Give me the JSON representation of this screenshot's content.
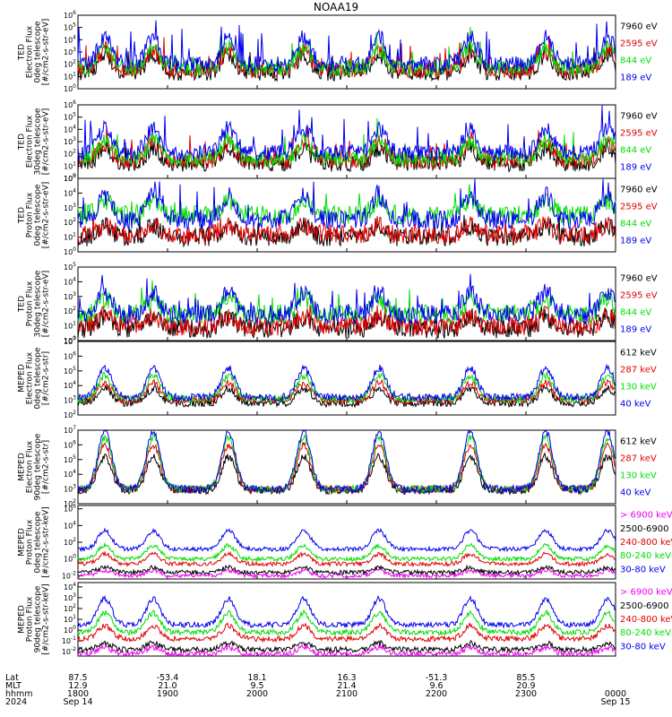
{
  "title": "NOAA19",
  "colors": {
    "black": "#000000",
    "red": "#e00000",
    "green": "#00dd00",
    "blue": "#0000ee",
    "magenta": "#ee00ee"
  },
  "chart_data": {
    "type": "line",
    "title": "NOAA19",
    "x_range": [
      "18:00",
      "00:00"
    ],
    "panels": [
      {
        "ylabel": [
          "TED",
          "Electron Flux",
          "0deg telescope",
          "[#/cm2-s-str-eV]"
        ],
        "ticks": [
          "10^6",
          "10^5",
          "10^4",
          "10^3",
          "10^2",
          "10^1",
          "10^0"
        ],
        "log_range": [
          0,
          6
        ],
        "series": [
          {
            "name": "7960 eV",
            "color": "black",
            "base": 1.3,
            "amp": 1.4
          },
          {
            "name": "2595 eV",
            "color": "red",
            "base": 1.5,
            "amp": 1.6
          },
          {
            "name": "844 eV",
            "color": "green",
            "base": 1.7,
            "amp": 1.6
          },
          {
            "name": "189 eV",
            "color": "blue",
            "base": 2.0,
            "amp": 2.2
          }
        ]
      },
      {
        "ylabel": [
          "TED",
          "Electron Flux",
          "30deg telescope",
          "[#/cm2-s-str-eV]"
        ],
        "ticks": [
          "10^6",
          "10^5",
          "10^4",
          "10^3",
          "10^2",
          "10^1",
          "10^0"
        ],
        "log_range": [
          0,
          6
        ],
        "series": [
          {
            "name": "7960 eV",
            "color": "black",
            "base": 1.2,
            "amp": 1.2
          },
          {
            "name": "2595 eV",
            "color": "red",
            "base": 1.4,
            "amp": 1.5
          },
          {
            "name": "844 eV",
            "color": "green",
            "base": 1.6,
            "amp": 1.5
          },
          {
            "name": "189 eV",
            "color": "blue",
            "base": 2.1,
            "amp": 2.0
          }
        ]
      },
      {
        "ylabel": [
          "TED",
          "Proton Flux",
          "0deg telescope",
          "[#/cm2-s-str-eV]"
        ],
        "ticks": [
          "10^5",
          "10^4",
          "10^3",
          "10^2",
          "10^1",
          "10^0"
        ],
        "log_range": [
          0,
          5
        ],
        "series": [
          {
            "name": "7960 eV",
            "color": "black",
            "base": 1.0,
            "amp": 0.8
          },
          {
            "name": "2595 eV",
            "color": "red",
            "base": 1.2,
            "amp": 0.6
          },
          {
            "name": "844 eV",
            "color": "green",
            "base": 2.5,
            "amp": 1.0
          },
          {
            "name": "189 eV",
            "color": "blue",
            "base": 2.2,
            "amp": 1.6
          }
        ]
      },
      {
        "ylabel": [
          "TED",
          "Proton Flux",
          "30deg telescope",
          "[#/cm2-s-str-eV]"
        ],
        "ticks": [
          "10^5",
          "10^4",
          "10^3",
          "10^2",
          "10^1",
          "10^0"
        ],
        "log_range": [
          0,
          5
        ],
        "series": [
          {
            "name": "7960 eV",
            "color": "black",
            "base": 0.8,
            "amp": 0.8
          },
          {
            "name": "2595 eV",
            "color": "red",
            "base": 1.0,
            "amp": 0.7
          },
          {
            "name": "844 eV",
            "color": "green",
            "base": 1.8,
            "amp": 1.0
          },
          {
            "name": "189 eV",
            "color": "blue",
            "base": 1.8,
            "amp": 1.5
          }
        ]
      },
      {
        "ylabel": [
          "MEPED",
          "Electron Flux",
          "0deg telescope",
          "[#/cm2-s-str]"
        ],
        "ticks": [
          "10^7",
          "10^6",
          "10^5",
          "10^4",
          "10^3",
          "10^2"
        ],
        "log_range": [
          2,
          7
        ],
        "series": [
          {
            "name": "612 keV",
            "color": "black",
            "base": 2.8,
            "amp": 1.0
          },
          {
            "name": "287 keV",
            "color": "red",
            "base": 3.0,
            "amp": 1.2
          },
          {
            "name": "130 keV",
            "color": "green",
            "base": 3.1,
            "amp": 1.6
          },
          {
            "name": "40 keV",
            "color": "blue",
            "base": 3.2,
            "amp": 2.0
          }
        ]
      },
      {
        "ylabel": [
          "MEPED",
          "Electron Flux",
          "90deg telescope",
          "[#/cm2-s-str]"
        ],
        "ticks": [
          "10^7",
          "10^6",
          "10^5",
          "10^4",
          "10^3",
          "10^2"
        ],
        "log_range": [
          2,
          7
        ],
        "series": [
          {
            "name": "612 keV",
            "color": "black",
            "base": 2.9,
            "amp": 2.3
          },
          {
            "name": "287 keV",
            "color": "red",
            "base": 3.0,
            "amp": 3.0
          },
          {
            "name": "130 keV",
            "color": "green",
            "base": 3.0,
            "amp": 3.5
          },
          {
            "name": "40 keV",
            "color": "blue",
            "base": 3.0,
            "amp": 3.9
          }
        ]
      },
      {
        "ylabel": [
          "MEPED",
          "Proton Flux",
          "0deg telescope",
          "[#/cm2-s-str-keV]"
        ],
        "ticks": [
          "10^6",
          "10^4",
          "10^2",
          "10^0",
          "10^-2"
        ],
        "log_range": [
          -2.4,
          6.4
        ],
        "series": [
          {
            "name": "> 6900 keV",
            "color": "magenta",
            "base": -2.0,
            "amp": 0.6
          },
          {
            "name": "2500-6900",
            "color": "black",
            "base": -1.6,
            "amp": 0.6
          },
          {
            "name": "240-800 keV",
            "color": "red",
            "base": -0.6,
            "amp": 1.2
          },
          {
            "name": "80-240 keV",
            "color": "green",
            "base": 0.0,
            "amp": 1.6
          },
          {
            "name": "30-80 keV",
            "color": "blue",
            "base": 1.2,
            "amp": 2.2
          }
        ]
      },
      {
        "ylabel": [
          "MEPED",
          "Proton Flux",
          "90deg telescope",
          "[#/cm2-s-str-keV]"
        ],
        "ticks": [
          "10^4",
          "10^3",
          "10^2",
          "10^1",
          "10^0",
          "10^-1",
          "10^-2"
        ],
        "log_range": [
          -2.4,
          4.4
        ],
        "series": [
          {
            "name": "> 6900 keV",
            "color": "magenta",
            "base": -2.2,
            "amp": 0.6
          },
          {
            "name": "2500-6900",
            "color": "black",
            "base": -1.8,
            "amp": 0.6
          },
          {
            "name": "240-800 keV",
            "color": "red",
            "base": -0.8,
            "amp": 1.2
          },
          {
            "name": "80-240 keV",
            "color": "green",
            "base": -0.2,
            "amp": 1.8
          },
          {
            "name": "30-80 keV",
            "color": "blue",
            "base": 0.5,
            "amp": 2.4
          }
        ]
      }
    ],
    "footer": {
      "row_labels": [
        "Lat",
        "MLT",
        "hhmm",
        "2024"
      ],
      "columns": [
        {
          "lat": "87.5",
          "mlt": "12.9",
          "hhmm": "1800",
          "date": "Sep 14"
        },
        {
          "lat": "-53.4",
          "mlt": "21.0",
          "hhmm": "1900",
          "date": ""
        },
        {
          "lat": "18.1",
          "mlt": "9.5",
          "hhmm": "2000",
          "date": ""
        },
        {
          "lat": "16.3",
          "mlt": "21.4",
          "hhmm": "2100",
          "date": ""
        },
        {
          "lat": "-51.3",
          "mlt": "9.6",
          "hhmm": "2200",
          "date": ""
        },
        {
          "lat": "85.5",
          "mlt": "20.9",
          "hhmm": "2300",
          "date": ""
        },
        {
          "lat": "",
          "mlt": "",
          "hhmm": "0000",
          "date": "Sep 15"
        }
      ]
    }
  }
}
